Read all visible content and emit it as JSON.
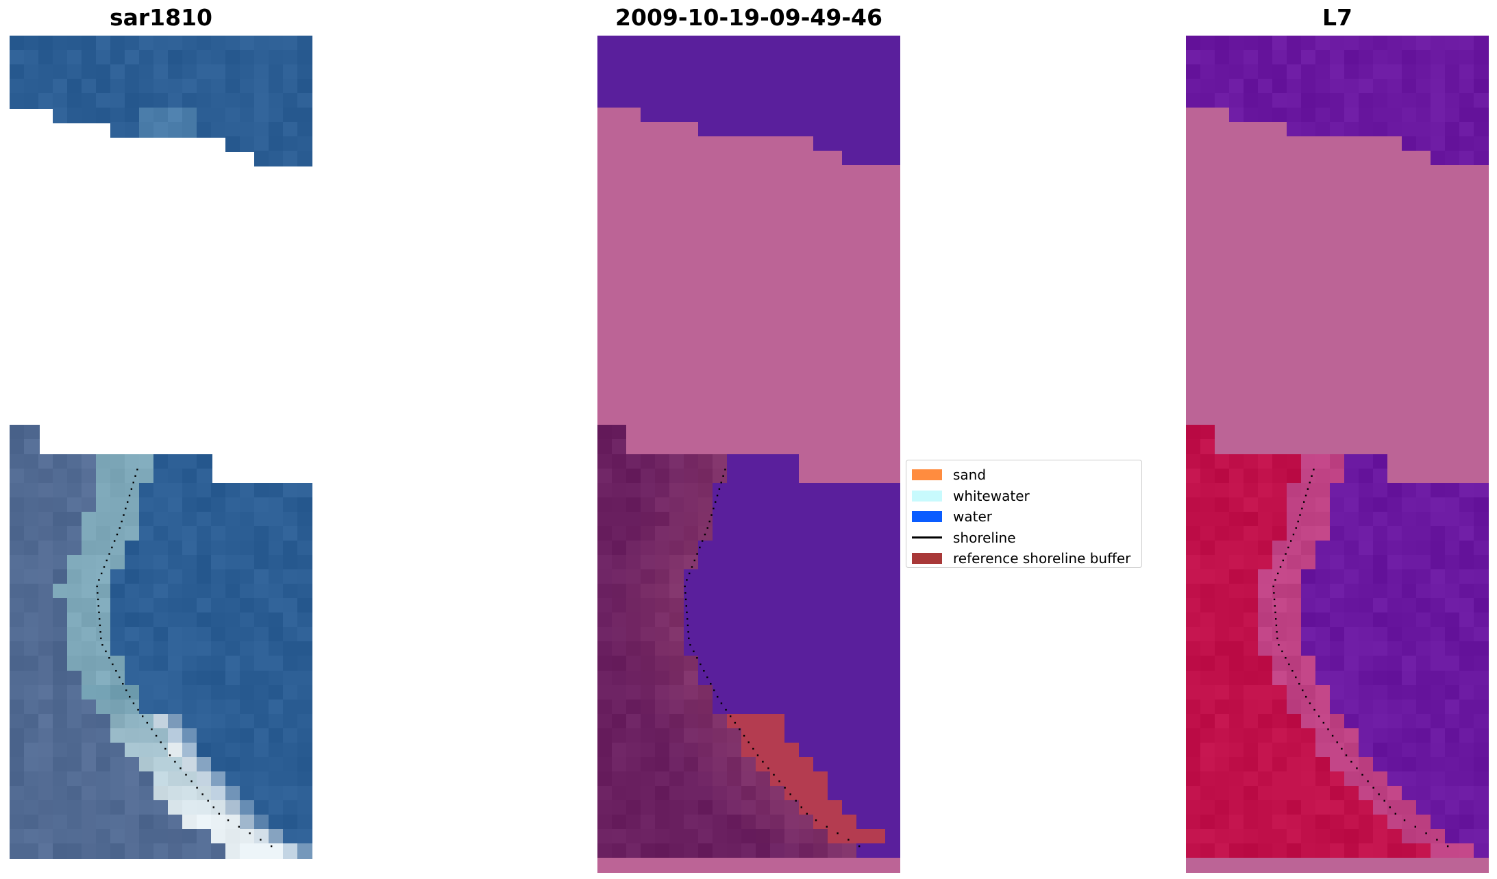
{
  "figure": {
    "panels": [
      {
        "title": "sar1810",
        "kind": "rgb"
      },
      {
        "title": "2009-10-19-09-49-46",
        "kind": "classified"
      },
      {
        "title": "L7",
        "kind": "index"
      }
    ]
  },
  "legend": {
    "items": [
      {
        "label": "sand",
        "color": "#ff8c3f",
        "type": "patch"
      },
      {
        "label": "whitewater",
        "color": "#c8fafd",
        "type": "patch"
      },
      {
        "label": "water",
        "color": "#0a5cff",
        "type": "patch"
      },
      {
        "label": "shoreline",
        "color": "#000000",
        "type": "line"
      },
      {
        "label": "reference shoreline buffer",
        "color": "#a83838",
        "type": "patch"
      }
    ]
  },
  "colors": {
    "nodata": "#bc6496",
    "water_dark": "#5a1f9c",
    "land_dark": "#6a2060",
    "buffer": "#b43c50",
    "land_index": "#c0104a",
    "water_index": "#6a18a0",
    "rgb_water": "#2c5e94",
    "rgb_land": "#4f6890",
    "rgb_surf": "#e8f0f4",
    "shoreline": "#000000"
  }
}
